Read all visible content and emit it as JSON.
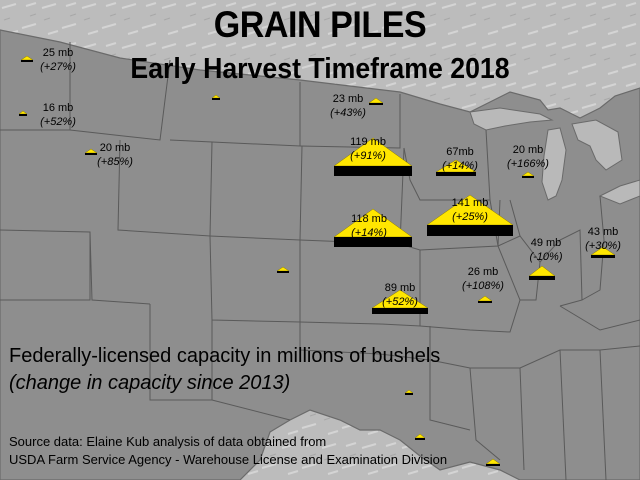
{
  "title": "GRAIN PILES",
  "subtitle": "Early Harvest Timeframe 2018",
  "caption_main": "Federally-licensed capacity in millions of bushels",
  "caption_sub": "(change in capacity since 2013)",
  "source_line1": "Source data: Elaine Kub analysis of data obtained from",
  "source_line2": "USDA Farm Service Agency - Warehouse License and Examination Division",
  "colors": {
    "pile": "#ffe600",
    "base": "#000000",
    "land": "#8e8e8e",
    "water": "#b8b8b8",
    "border": "#5a5a5a"
  },
  "piles": [
    {
      "id": "wa",
      "value": "25 mb",
      "change": "(+27%)"
    },
    {
      "id": "or",
      "value": "16 mb",
      "change": "(+52%)"
    },
    {
      "id": "id",
      "value": "20 mb",
      "change": "(+85%)"
    },
    {
      "id": "nd",
      "value": "23 mb",
      "change": "(+43%)"
    },
    {
      "id": "sd",
      "value": "119 mb",
      "change": "(+91%)"
    },
    {
      "id": "mn",
      "value": "67mb",
      "change": "(+14%)"
    },
    {
      "id": "wi",
      "value": "20 mb",
      "change": "(+166%)"
    },
    {
      "id": "ia",
      "value": "141 mb",
      "change": "(+25%)"
    },
    {
      "id": "ne",
      "value": "118 mb",
      "change": "(+14%)"
    },
    {
      "id": "il",
      "value": "49 mb",
      "change": "(-10%)"
    },
    {
      "id": "oh",
      "value": "43 mb",
      "change": "(+30%)"
    },
    {
      "id": "mo",
      "value": "26 mb",
      "change": "(+108%)"
    },
    {
      "id": "ks",
      "value": "89 mb",
      "change": "(+52%)"
    }
  ]
}
